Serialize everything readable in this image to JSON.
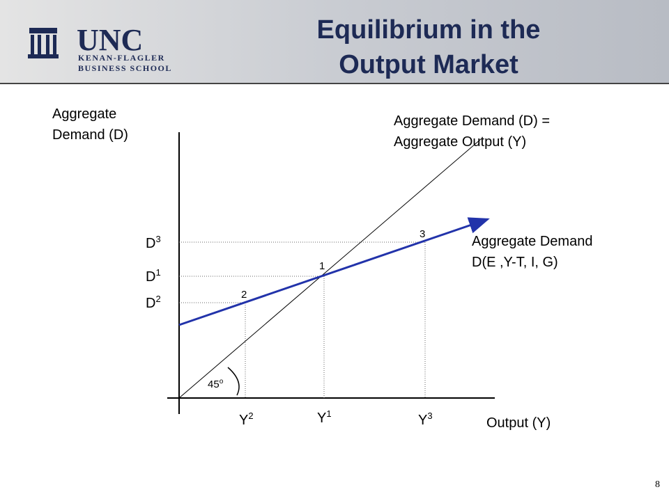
{
  "header": {
    "logo_line1": "UNC",
    "logo_line2": "KENAN-FLAGLER",
    "logo_line3": "BUSINESS SCHOOL",
    "title_lines": [
      "Equilibrium in the",
      "Output Market"
    ]
  },
  "diagram": {
    "y_axis_label_lines": [
      "Aggregate",
      "Demand (D)"
    ],
    "x_axis_label": "Output (Y)",
    "line_45_label_lines": [
      "Aggregate Demand (D) =",
      "Aggregate Output (Y)"
    ],
    "ad_label_lines": [
      "Aggregate Demand",
      "D(E ,Y-T, I, G)"
    ],
    "angle_label": {
      "base": "45",
      "sup": "o"
    },
    "y_marks": [
      {
        "base": "D",
        "sup": "3"
      },
      {
        "base": "D",
        "sup": "1"
      },
      {
        "base": "D",
        "sup": "2"
      }
    ],
    "x_marks": [
      {
        "base": "Y",
        "sup": "2"
      },
      {
        "base": "Y",
        "sup": "1"
      },
      {
        "base": "Y",
        "sup": "3"
      }
    ],
    "points": [
      "3",
      "1",
      "2"
    ]
  },
  "page_number": "8"
}
